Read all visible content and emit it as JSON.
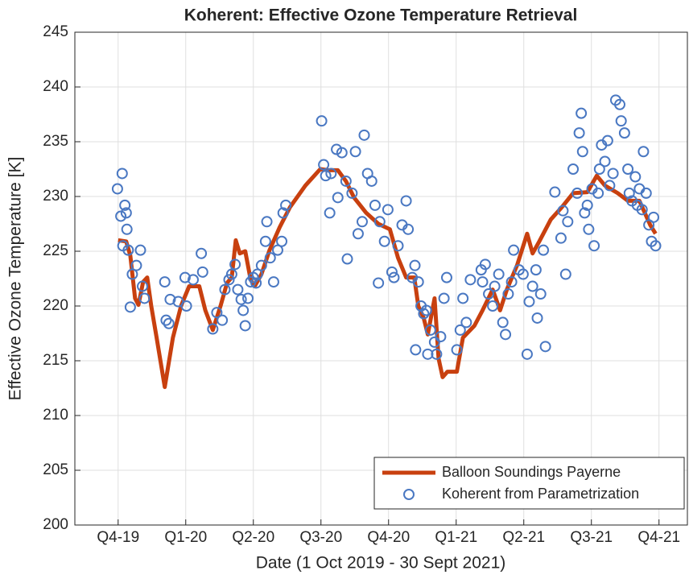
{
  "chart_data": {
    "type": "line",
    "title": "Koherent: Effective Ozone Temperature Retrieval",
    "xlabel": "Date (1 Oct 2019 - 30 Sept 2021)",
    "ylabel": "Effective Ozone Temperature [K]",
    "xlim": [
      -0.64,
      8.42
    ],
    "ylim": [
      200,
      245
    ],
    "xticks": [
      {
        "value": 0,
        "label": "Q4-19"
      },
      {
        "value": 1,
        "label": "Q1-20"
      },
      {
        "value": 2,
        "label": "Q2-20"
      },
      {
        "value": 3,
        "label": "Q3-20"
      },
      {
        "value": 4,
        "label": "Q4-20"
      },
      {
        "value": 5,
        "label": "Q1-21"
      },
      {
        "value": 6,
        "label": "Q2-21"
      },
      {
        "value": 7,
        "label": "Q3-21"
      },
      {
        "value": 8,
        "label": "Q4-21"
      }
    ],
    "yticks": [
      200,
      205,
      210,
      215,
      220,
      225,
      230,
      235,
      240,
      245
    ],
    "grid": true,
    "legend": "lower right",
    "series": [
      {
        "name": "Balloon Soundings Payerne",
        "color": "#c8400f",
        "type": "line",
        "x": [
          0,
          0.12,
          0.18,
          0.25,
          0.3,
          0.37,
          0.43,
          0.49,
          0.57,
          0.69,
          0.81,
          0.93,
          1.05,
          1.2,
          1.29,
          1.4,
          1.52,
          1.61,
          1.68,
          1.74,
          1.8,
          1.88,
          1.96,
          2.02,
          2.12,
          2.24,
          2.39,
          2.54,
          2.77,
          2.99,
          3.11,
          3.25,
          3.37,
          3.49,
          3.67,
          3.85,
          4.02,
          4.14,
          4.26,
          4.38,
          4.44,
          4.52,
          4.58,
          4.68,
          4.74,
          4.8,
          4.87,
          5.01,
          5.1,
          5.27,
          5.39,
          5.54,
          5.65,
          5.75,
          5.9,
          6.05,
          6.13,
          6.23,
          6.4,
          6.56,
          6.73,
          6.94,
          7.08,
          7.2,
          7.39,
          7.54,
          7.71,
          7.87,
          7.95
        ],
        "values": [
          226.0,
          225.9,
          224.6,
          220.7,
          220.1,
          222.2,
          222.6,
          220.0,
          217.1,
          212.6,
          217.1,
          220.0,
          221.8,
          221.8,
          219.6,
          217.8,
          220.1,
          222.1,
          222.6,
          226.0,
          224.8,
          225.0,
          222.4,
          221.8,
          222.9,
          225.1,
          227.2,
          229.0,
          231.0,
          232.5,
          232.4,
          232.4,
          231.4,
          229.9,
          228.5,
          227.5,
          227.0,
          224.4,
          222.6,
          222.6,
          220.0,
          218.9,
          217.4,
          220.7,
          215.2,
          213.5,
          214.0,
          214.0,
          217.1,
          218.2,
          219.6,
          221.5,
          219.6,
          221.5,
          223.7,
          226.6,
          224.8,
          225.9,
          227.9,
          229.0,
          230.3,
          230.4,
          231.9,
          231.0,
          230.3,
          229.6,
          229.6,
          227.4,
          226.6
        ]
      },
      {
        "name": "Koherent from Parametrization",
        "color": "#4a78c2",
        "type": "scatter",
        "x": [
          -0.01,
          0.06,
          0.04,
          0.1,
          0.12,
          0.13,
          0.07,
          0.15,
          0.18,
          0.21,
          0.27,
          0.33,
          0.36,
          0.39,
          0.69,
          0.71,
          0.75,
          0.77,
          0.89,
          0.99,
          1.01,
          1.11,
          1.23,
          1.25,
          1.4,
          1.46,
          1.54,
          1.58,
          1.64,
          1.68,
          1.73,
          1.77,
          1.82,
          1.85,
          1.88,
          1.92,
          1.96,
          2.0,
          2.04,
          2.06,
          2.12,
          2.18,
          2.2,
          2.25,
          2.3,
          2.36,
          2.42,
          2.44,
          2.48,
          3.01,
          3.04,
          3.07,
          3.13,
          3.15,
          3.23,
          3.25,
          3.31,
          3.37,
          3.39,
          3.46,
          3.51,
          3.55,
          3.61,
          3.64,
          3.69,
          3.75,
          3.8,
          3.85,
          3.87,
          3.94,
          3.99,
          4.05,
          4.08,
          4.14,
          4.2,
          4.26,
          4.29,
          4.35,
          4.39,
          4.4,
          4.44,
          4.48,
          4.52,
          4.56,
          4.58,
          4.62,
          4.68,
          4.71,
          4.77,
          4.82,
          4.86,
          5.01,
          5.06,
          5.1,
          5.15,
          5.21,
          5.37,
          5.39,
          5.43,
          5.48,
          5.54,
          5.57,
          5.63,
          5.69,
          5.73,
          5.77,
          5.82,
          5.85,
          5.93,
          5.99,
          6.05,
          6.08,
          6.13,
          6.18,
          6.2,
          6.25,
          6.29,
          6.32,
          6.46,
          6.55,
          6.58,
          6.62,
          6.65,
          6.73,
          6.79,
          6.82,
          6.85,
          6.87,
          6.9,
          6.94,
          6.96,
          7.01,
          7.04,
          7.1,
          7.12,
          7.15,
          7.2,
          7.24,
          7.27,
          7.32,
          7.36,
          7.42,
          7.44,
          7.49,
          7.54,
          7.56,
          7.6,
          7.65,
          7.68,
          7.71,
          7.75,
          7.77,
          7.81,
          7.85,
          7.89,
          7.92,
          7.95
        ],
        "values": [
          230.7,
          232.1,
          228.2,
          229.2,
          228.5,
          227.0,
          225.5,
          225.1,
          219.9,
          222.9,
          223.7,
          225.1,
          221.8,
          220.7,
          222.2,
          218.7,
          218.4,
          220.6,
          220.4,
          222.6,
          220.0,
          222.4,
          224.8,
          223.1,
          217.9,
          219.4,
          218.7,
          221.5,
          222.4,
          222.9,
          223.8,
          221.5,
          220.6,
          219.6,
          218.2,
          220.7,
          222.2,
          222.6,
          222.1,
          222.9,
          223.7,
          225.9,
          227.7,
          224.4,
          222.2,
          225.1,
          225.9,
          228.5,
          229.2,
          236.9,
          232.9,
          231.9,
          228.5,
          232.1,
          234.3,
          229.9,
          234.0,
          231.4,
          224.3,
          230.3,
          234.1,
          226.6,
          227.7,
          235.6,
          232.1,
          231.4,
          229.2,
          222.1,
          227.7,
          225.9,
          228.8,
          223.1,
          222.6,
          225.5,
          227.4,
          229.6,
          227.0,
          222.6,
          223.7,
          216.0,
          222.2,
          220.0,
          219.3,
          219.6,
          215.6,
          217.8,
          216.7,
          215.6,
          217.2,
          220.7,
          222.6,
          216.0,
          217.8,
          220.7,
          218.5,
          222.4,
          223.3,
          222.2,
          223.8,
          221.1,
          220.0,
          221.8,
          222.9,
          218.5,
          217.4,
          221.1,
          222.2,
          225.1,
          223.3,
          222.9,
          215.6,
          220.4,
          221.8,
          223.3,
          218.9,
          221.1,
          225.1,
          216.3,
          230.4,
          226.2,
          228.7,
          222.9,
          227.7,
          232.5,
          230.3,
          235.8,
          237.6,
          234.1,
          228.5,
          229.2,
          227.0,
          230.7,
          225.5,
          230.3,
          232.5,
          234.7,
          233.2,
          235.1,
          231.0,
          232.1,
          238.8,
          238.4,
          236.9,
          235.8,
          232.5,
          230.3,
          229.6,
          231.8,
          229.2,
          230.7,
          228.8,
          234.1,
          230.3,
          227.4,
          225.9,
          228.1,
          225.5
        ]
      }
    ]
  }
}
